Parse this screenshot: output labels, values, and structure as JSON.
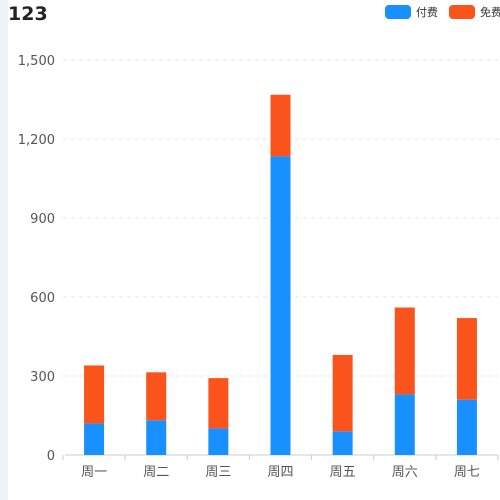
{
  "chart_data": {
    "type": "bar",
    "stacked": true,
    "title": "123",
    "categories": [
      "周一",
      "周二",
      "周三",
      "周四",
      "周五",
      "周六",
      "周七"
    ],
    "series": [
      {
        "name": "付费",
        "color": "#1890ff",
        "values": [
          120,
          132,
          101,
          1134,
          90,
          230,
          210
        ]
      },
      {
        "name": "免费",
        "color": "#fa541c",
        "values": [
          220,
          182,
          191,
          234,
          290,
          330,
          310
        ]
      }
    ],
    "ylim": [
      0,
      1500
    ],
    "yticks": [
      "0",
      "300",
      "600",
      "900",
      "1,200",
      "1,500"
    ],
    "ytick_values": [
      0,
      300,
      600,
      900,
      1200,
      1500
    ],
    "grid": true,
    "legend_position": "top-right"
  }
}
